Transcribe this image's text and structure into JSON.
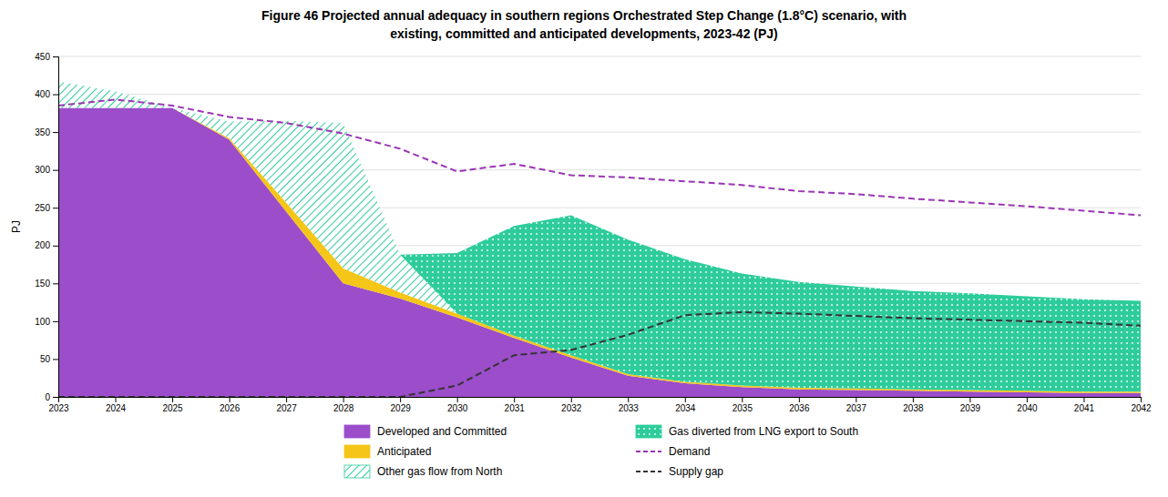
{
  "chart_data": {
    "type": "area",
    "title": "Figure 46  Projected annual adequacy in southern regions Orchestrated Step Change (1.8°C) scenario, with",
    "subtitle": "existing, committed and anticipated developments, 2023-42 (PJ)",
    "y_label": "PJ",
    "x": [
      2023,
      2024,
      2025,
      2026,
      2027,
      2028,
      2029,
      2030,
      2031,
      2032,
      2033,
      2034,
      2035,
      2036,
      2037,
      2038,
      2039,
      2040,
      2041,
      2042
    ],
    "xlim": [
      2023,
      2042
    ],
    "xticks": [
      2023,
      2024,
      2025,
      2026,
      2027,
      2028,
      2029,
      2030,
      2031,
      2032,
      2033,
      2034,
      2035,
      2036,
      2037,
      2038,
      2039,
      2040,
      2041,
      2042
    ],
    "ylim": [
      0,
      450
    ],
    "yticks": [
      0,
      50,
      100,
      150,
      200,
      250,
      300,
      350,
      400,
      450
    ],
    "stacked": true,
    "grid": true,
    "legend": "bottom",
    "series": [
      {
        "name": "Developed and Committed",
        "type": "area",
        "color": "#9b4dca",
        "values": [
          382,
          382,
          382,
          340,
          245,
          150,
          130,
          105,
          78,
          52,
          28,
          18,
          13,
          10,
          9,
          8,
          7,
          6,
          5,
          5
        ]
      },
      {
        "name": "Anticipated",
        "type": "area",
        "color": "#f5c518",
        "values": [
          0,
          0,
          0,
          2,
          12,
          20,
          8,
          5,
          3,
          3,
          2,
          2,
          2,
          2,
          2,
          2,
          2,
          2,
          2,
          2
        ]
      },
      {
        "name": "Other gas flow from North",
        "type": "area",
        "color": "#2ecc9b",
        "values": [
          35,
          22,
          0,
          22,
          108,
          192,
          50,
          0,
          0,
          0,
          0,
          0,
          0,
          0,
          0,
          0,
          0,
          0,
          0,
          0
        ]
      },
      {
        "name": "Gas diverted from LNG export to South",
        "type": "area",
        "color": "#2ecc9b",
        "values": [
          0,
          0,
          0,
          0,
          0,
          0,
          0,
          80,
          145,
          185,
          178,
          162,
          148,
          140,
          135,
          130,
          128,
          125,
          122,
          120
        ]
      },
      {
        "name": "Demand",
        "type": "line",
        "color": "#9b34b5",
        "line_style": "dashed",
        "values": [
          385,
          393,
          385,
          370,
          362,
          348,
          328,
          298,
          308,
          293,
          290,
          285,
          280,
          272,
          268,
          262,
          257,
          252,
          246,
          240
        ]
      },
      {
        "name": "Supply gap",
        "type": "line",
        "color": "#333333",
        "line_style": "dashed",
        "values": [
          0,
          0,
          0,
          0,
          0,
          0,
          0,
          15,
          55,
          62,
          82,
          108,
          112,
          110,
          107,
          104,
          102,
          100,
          98,
          94
        ]
      }
    ]
  }
}
